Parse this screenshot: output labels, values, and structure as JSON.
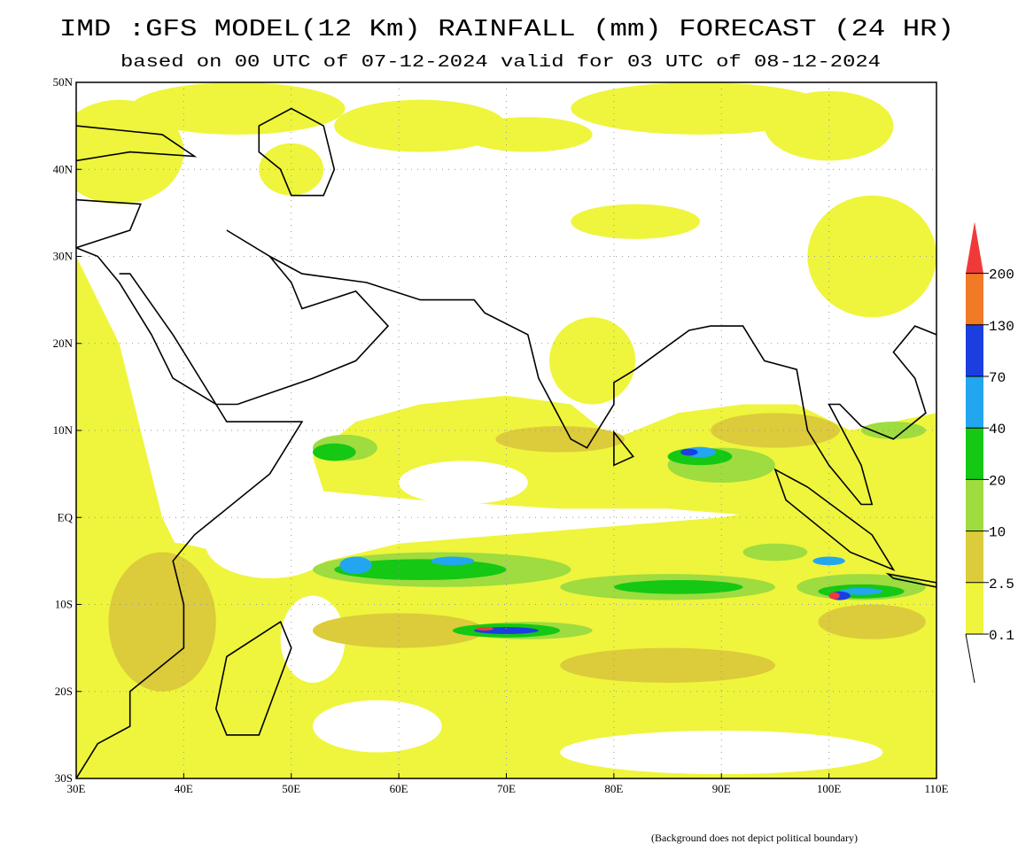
{
  "header": {
    "title": "IMD :GFS MODEL(12 Km) RAINFALL (mm) FORECAST (24 HR)",
    "subtitle": "based on 00 UTC of 07-12-2024 valid for 03 UTC of 08-12-2024"
  },
  "map": {
    "lat_labels": [
      "50N",
      "40N",
      "30N",
      "20N",
      "10N",
      "EQ",
      "10S",
      "20S",
      "30S"
    ],
    "lon_labels": [
      "30E",
      "40E",
      "50E",
      "60E",
      "70E",
      "80E",
      "90E",
      "100E",
      "110E"
    ]
  },
  "legend": {
    "levels": [
      {
        "label": "0.1",
        "color": "#eef53c"
      },
      {
        "label": "2.5",
        "color": "#dccb3a"
      },
      {
        "label": "10",
        "color": "#9edc40"
      },
      {
        "label": "20",
        "color": "#14c814"
      },
      {
        "label": "40",
        "color": "#22a6f0"
      },
      {
        "label": "70",
        "color": "#1c3ee0"
      },
      {
        "label": "130",
        "color": "#f07a26"
      },
      {
        "label": "200",
        "color": "#f03a3a"
      }
    ]
  },
  "footnote": "(Background does not depict political boundary)"
}
